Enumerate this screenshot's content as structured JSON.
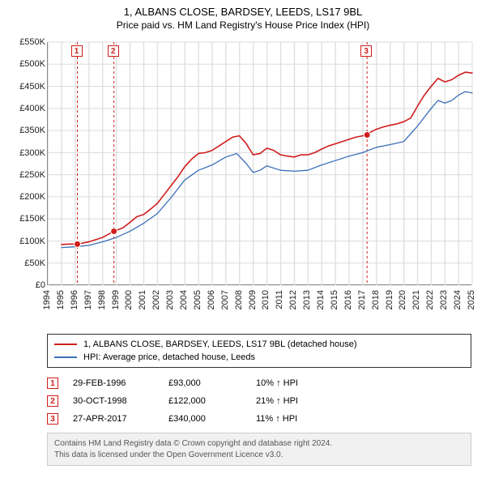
{
  "title": "1, ALBANS CLOSE, BARDSEY, LEEDS, LS17 9BL",
  "subtitle": "Price paid vs. HM Land Registry's House Price Index (HPI)",
  "chart": {
    "type": "line",
    "background_color": "#ffffff",
    "grid_color": "#dcdcdc",
    "track_color": "#eeeeee",
    "axis_color": "#333333",
    "font_size_axis": 11,
    "xlim": [
      1994,
      2025
    ],
    "xtick_step": 1,
    "ylim": [
      0,
      550000
    ],
    "ytick_step": 50000,
    "ytick_format": "£K",
    "y_labels": [
      "£0",
      "£50K",
      "£100K",
      "£150K",
      "£200K",
      "£250K",
      "£300K",
      "£350K",
      "£400K",
      "£450K",
      "£500K",
      "£550K"
    ],
    "x_labels": [
      "1994",
      "1995",
      "1996",
      "1997",
      "1998",
      "1999",
      "2000",
      "2001",
      "2002",
      "2003",
      "2004",
      "2005",
      "2006",
      "2007",
      "2008",
      "2009",
      "2010",
      "2011",
      "2012",
      "2013",
      "2014",
      "2015",
      "2016",
      "2017",
      "2018",
      "2019",
      "2020",
      "2021",
      "2022",
      "2023",
      "2024",
      "2025"
    ],
    "series": [
      {
        "name": "1, ALBANS CLOSE, BARDSEY, LEEDS, LS17 9BL (detached house)",
        "color": "#d11d1d",
        "line_width": 1.6,
        "data": [
          [
            1995.0,
            92000
          ],
          [
            1995.5,
            93000
          ],
          [
            1996.16,
            93000
          ],
          [
            1997.0,
            98000
          ],
          [
            1998.0,
            108000
          ],
          [
            1998.83,
            122000
          ],
          [
            1999.5,
            130000
          ],
          [
            2000.0,
            142000
          ],
          [
            2000.5,
            155000
          ],
          [
            2001.0,
            160000
          ],
          [
            2001.5,
            172000
          ],
          [
            2002.0,
            185000
          ],
          [
            2002.5,
            205000
          ],
          [
            2003.0,
            225000
          ],
          [
            2003.5,
            245000
          ],
          [
            2004.0,
            268000
          ],
          [
            2004.5,
            285000
          ],
          [
            2005.0,
            298000
          ],
          [
            2005.5,
            300000
          ],
          [
            2006.0,
            305000
          ],
          [
            2006.5,
            315000
          ],
          [
            2007.0,
            325000
          ],
          [
            2007.5,
            335000
          ],
          [
            2008.0,
            338000
          ],
          [
            2008.5,
            320000
          ],
          [
            2009.0,
            295000
          ],
          [
            2009.5,
            298000
          ],
          [
            2010.0,
            310000
          ],
          [
            2010.5,
            305000
          ],
          [
            2011.0,
            295000
          ],
          [
            2011.5,
            292000
          ],
          [
            2012.0,
            290000
          ],
          [
            2012.5,
            295000
          ],
          [
            2013.0,
            295000
          ],
          [
            2013.5,
            300000
          ],
          [
            2014.0,
            308000
          ],
          [
            2014.5,
            315000
          ],
          [
            2015.0,
            320000
          ],
          [
            2015.5,
            325000
          ],
          [
            2016.0,
            330000
          ],
          [
            2016.5,
            335000
          ],
          [
            2017.0,
            338000
          ],
          [
            2017.32,
            340000
          ],
          [
            2017.5,
            345000
          ],
          [
            2018.0,
            353000
          ],
          [
            2018.5,
            358000
          ],
          [
            2019.0,
            362000
          ],
          [
            2019.5,
            365000
          ],
          [
            2020.0,
            370000
          ],
          [
            2020.5,
            378000
          ],
          [
            2021.0,
            405000
          ],
          [
            2021.5,
            430000
          ],
          [
            2022.0,
            450000
          ],
          [
            2022.5,
            468000
          ],
          [
            2023.0,
            460000
          ],
          [
            2023.5,
            465000
          ],
          [
            2024.0,
            475000
          ],
          [
            2024.5,
            482000
          ],
          [
            2025.0,
            480000
          ]
        ]
      },
      {
        "name": "HPI: Average price, detached house, Leeds",
        "color": "#3a6fb7",
        "line_width": 1.3,
        "data": [
          [
            1995.0,
            85000
          ],
          [
            1996.0,
            87000
          ],
          [
            1997.0,
            90000
          ],
          [
            1998.0,
            98000
          ],
          [
            1999.0,
            108000
          ],
          [
            2000.0,
            122000
          ],
          [
            2001.0,
            140000
          ],
          [
            2002.0,
            162000
          ],
          [
            2003.0,
            198000
          ],
          [
            2004.0,
            238000
          ],
          [
            2005.0,
            260000
          ],
          [
            2006.0,
            272000
          ],
          [
            2007.0,
            290000
          ],
          [
            2007.8,
            298000
          ],
          [
            2008.5,
            275000
          ],
          [
            2009.0,
            255000
          ],
          [
            2009.5,
            260000
          ],
          [
            2010.0,
            270000
          ],
          [
            2011.0,
            260000
          ],
          [
            2012.0,
            258000
          ],
          [
            2013.0,
            260000
          ],
          [
            2014.0,
            272000
          ],
          [
            2015.0,
            282000
          ],
          [
            2016.0,
            292000
          ],
          [
            2017.0,
            300000
          ],
          [
            2018.0,
            312000
          ],
          [
            2019.0,
            318000
          ],
          [
            2020.0,
            325000
          ],
          [
            2021.0,
            360000
          ],
          [
            2022.0,
            400000
          ],
          [
            2022.5,
            418000
          ],
          [
            2023.0,
            412000
          ],
          [
            2023.5,
            418000
          ],
          [
            2024.0,
            430000
          ],
          [
            2024.5,
            438000
          ],
          [
            2025.0,
            435000
          ]
        ]
      }
    ],
    "transaction_markers": [
      {
        "n": "1",
        "x": 1996.16,
        "y": 93000,
        "color": "#d11d1d"
      },
      {
        "n": "2",
        "x": 1998.83,
        "y": 122000,
        "color": "#d11d1d"
      },
      {
        "n": "3",
        "x": 2017.32,
        "y": 340000,
        "color": "#d11d1d"
      }
    ],
    "marker_box_top_y": 530000,
    "point_radius": 4
  },
  "legend": {
    "items": [
      {
        "color": "#d11d1d",
        "label": "1, ALBANS CLOSE, BARDSEY, LEEDS, LS17 9BL (detached house)"
      },
      {
        "color": "#3a6fb7",
        "label": "HPI: Average price, detached house, Leeds"
      }
    ]
  },
  "transactions": [
    {
      "n": "1",
      "color": "#d11d1d",
      "date": "29-FEB-1996",
      "price": "£93,000",
      "pct": "10% ↑ HPI"
    },
    {
      "n": "2",
      "color": "#d11d1d",
      "date": "30-OCT-1998",
      "price": "£122,000",
      "pct": "21% ↑ HPI"
    },
    {
      "n": "3",
      "color": "#d11d1d",
      "date": "27-APR-2017",
      "price": "£340,000",
      "pct": "11% ↑ HPI"
    }
  ],
  "footer": {
    "line1": "Contains HM Land Registry data © Crown copyright and database right 2024.",
    "line2": "This data is licensed under the Open Government Licence v3.0."
  }
}
